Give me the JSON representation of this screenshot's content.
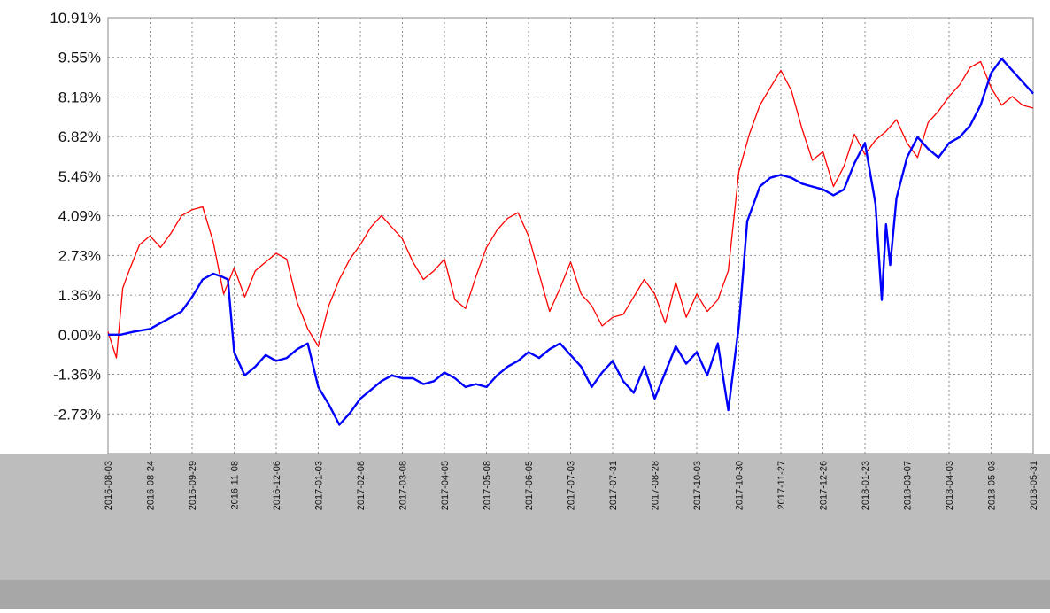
{
  "chart_data": {
    "type": "line",
    "title": "",
    "xlabel": "",
    "ylabel": "",
    "y_tick_labels": [
      "10.91%",
      "9.55%",
      "8.18%",
      "6.82%",
      "5.46%",
      "4.09%",
      "2.73%",
      "1.36%",
      "0.00%",
      "-1.36%",
      "-2.73%"
    ],
    "ylim": [
      -4.09,
      10.91
    ],
    "y_unit": "percent",
    "x_tick_labels": [
      "2016-08-03",
      "2016-08-24",
      "2016-09-29",
      "2016-11-08",
      "2016-12-06",
      "2017-01-03",
      "2017-02-08",
      "2017-03-08",
      "2017-04-05",
      "2017-05-08",
      "2017-06-05",
      "2017-07-03",
      "2017-07-31",
      "2017-08-28",
      "2017-10-03",
      "2017-10-30",
      "2017-11-27",
      "2017-12-26",
      "2018-01-23",
      "2018-03-07",
      "2018-04-03",
      "2018-05-03",
      "2018-05-31"
    ],
    "xlim": [
      0,
      22
    ],
    "grid": true,
    "legend": "none",
    "series": [
      {
        "color": "#ff0000",
        "x": [
          0,
          0.2,
          0.35,
          0.5,
          0.75,
          1,
          1.25,
          1.5,
          1.75,
          2,
          2.25,
          2.5,
          2.75,
          3,
          3.25,
          3.5,
          3.75,
          4,
          4.25,
          4.5,
          4.75,
          5,
          5.25,
          5.5,
          5.75,
          6,
          6.25,
          6.5,
          6.75,
          7,
          7.25,
          7.5,
          7.75,
          8,
          8.25,
          8.5,
          8.75,
          9,
          9.25,
          9.5,
          9.75,
          10,
          10.25,
          10.5,
          10.75,
          11,
          11.25,
          11.5,
          11.75,
          12,
          12.25,
          12.5,
          12.75,
          13,
          13.25,
          13.5,
          13.75,
          14,
          14.25,
          14.5,
          14.75,
          15,
          15.25,
          15.5,
          15.75,
          16,
          16.25,
          16.5,
          16.75,
          17,
          17.25,
          17.5,
          17.75,
          18,
          18.25,
          18.5,
          18.75,
          19,
          19.25,
          19.5,
          19.75,
          20,
          20.25,
          20.5,
          20.75,
          21,
          21.25,
          21.5,
          21.75,
          22
        ],
        "values": [
          0.1,
          -0.8,
          1.6,
          2.2,
          3.1,
          3.4,
          3.0,
          3.5,
          4.1,
          4.3,
          4.4,
          3.2,
          1.4,
          2.3,
          1.3,
          2.2,
          2.5,
          2.8,
          2.6,
          1.1,
          0.2,
          -0.4,
          1.0,
          1.9,
          2.6,
          3.1,
          3.7,
          4.1,
          3.7,
          3.3,
          2.5,
          1.9,
          2.2,
          2.6,
          1.2,
          0.9,
          2.0,
          3.0,
          3.6,
          4.0,
          4.2,
          3.4,
          2.1,
          0.8,
          1.6,
          2.5,
          1.4,
          1.0,
          0.3,
          0.6,
          0.7,
          1.3,
          1.9,
          1.4,
          0.4,
          1.8,
          0.6,
          1.4,
          0.8,
          1.2,
          2.2,
          5.6,
          6.9,
          7.9,
          8.5,
          9.1,
          8.4,
          7.1,
          6.0,
          6.3,
          5.1,
          5.8,
          6.9,
          6.2,
          6.7,
          7.0,
          7.4,
          6.6,
          6.1,
          7.3,
          7.7,
          8.2,
          8.6,
          9.2,
          9.4,
          8.5,
          7.9,
          8.2,
          7.9,
          7.8
        ],
        "width": 1.3
      },
      {
        "color": "#0000ff",
        "x": [
          0,
          0.3,
          0.6,
          1,
          1.25,
          1.5,
          1.75,
          2,
          2.25,
          2.5,
          2.7,
          2.85,
          3,
          3.25,
          3.5,
          3.75,
          4,
          4.25,
          4.5,
          4.75,
          5,
          5.25,
          5.5,
          5.75,
          6,
          6.25,
          6.5,
          6.75,
          7,
          7.25,
          7.5,
          7.75,
          8,
          8.25,
          8.5,
          8.75,
          9,
          9.25,
          9.5,
          9.75,
          10,
          10.25,
          10.5,
          10.75,
          11,
          11.25,
          11.5,
          11.75,
          12,
          12.25,
          12.5,
          12.75,
          13,
          13.25,
          13.5,
          13.75,
          14,
          14.25,
          14.5,
          14.75,
          15,
          15.2,
          15.5,
          15.75,
          16,
          16.25,
          16.5,
          16.75,
          17,
          17.25,
          17.5,
          17.75,
          18,
          18.25,
          18.4,
          18.5,
          18.6,
          18.75,
          19,
          19.25,
          19.5,
          19.75,
          20,
          20.25,
          20.5,
          20.75,
          21,
          21.25,
          21.5,
          21.75,
          22
        ],
        "values": [
          0.0,
          0.0,
          0.1,
          0.2,
          0.4,
          0.6,
          0.8,
          1.3,
          1.9,
          2.1,
          2.0,
          1.9,
          -0.6,
          -1.4,
          -1.1,
          -0.7,
          -0.9,
          -0.8,
          -0.5,
          -0.3,
          -1.8,
          -2.4,
          -3.1,
          -2.7,
          -2.2,
          -1.9,
          -1.6,
          -1.4,
          -1.5,
          -1.5,
          -1.7,
          -1.6,
          -1.3,
          -1.5,
          -1.8,
          -1.7,
          -1.8,
          -1.4,
          -1.1,
          -0.9,
          -0.6,
          -0.8,
          -0.5,
          -0.3,
          -0.7,
          -1.1,
          -1.8,
          -1.3,
          -0.9,
          -1.6,
          -2.0,
          -1.1,
          -2.2,
          -1.3,
          -0.4,
          -1.0,
          -0.6,
          -1.4,
          -0.3,
          -2.6,
          0.3,
          3.9,
          5.1,
          5.4,
          5.5,
          5.4,
          5.2,
          5.1,
          5.0,
          4.8,
          5.0,
          5.9,
          6.6,
          4.5,
          1.2,
          3.8,
          2.4,
          4.7,
          6.1,
          6.8,
          6.4,
          6.1,
          6.6,
          6.8,
          7.2,
          7.9,
          9.0,
          9.5,
          9.1,
          8.7,
          8.3
        ],
        "width": 2.4
      }
    ]
  }
}
